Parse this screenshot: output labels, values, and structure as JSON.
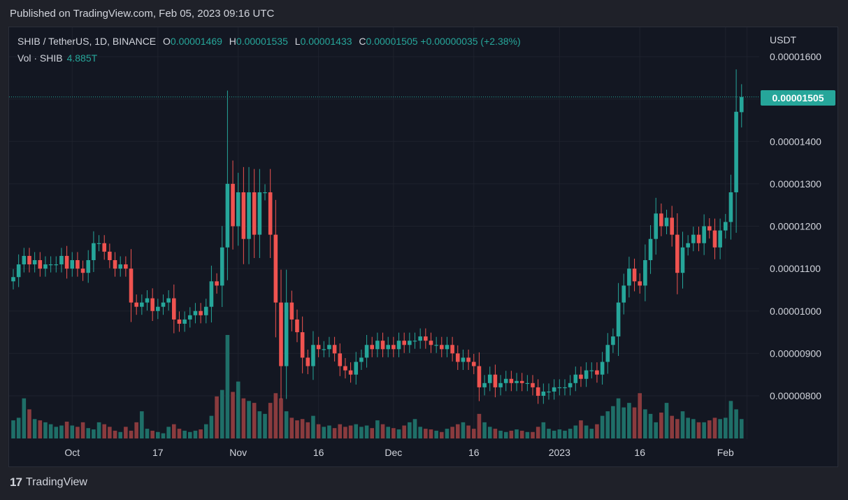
{
  "header": {
    "published": "Published on TradingView.com, Feb 05, 2023 09:16 UTC"
  },
  "legend": {
    "symbol": "SHIB / TetherUS, 1D, BINANCE",
    "open_key": "O",
    "open": "0.00001469",
    "high_key": "H",
    "high": "0.00001535",
    "low_key": "L",
    "low": "0.00001433",
    "close_key": "C",
    "close": "0.00001505",
    "change": "+0.00000035 (+2.38%)",
    "volume_label": "Vol · SHIB",
    "volume_value": "4.885T"
  },
  "axis": {
    "currency": "USDT",
    "last_price_tag": "0.00001505"
  },
  "footer": {
    "brand_logo": "17",
    "brand": "TradingView"
  },
  "colors": {
    "up": "#26a69a",
    "down": "#ef5350",
    "background": "#131722",
    "grid": "#1e222d",
    "text": "#d1d4dc"
  },
  "chart_data": {
    "type": "candlestick",
    "y_unit": "USDT",
    "ylim": [
      7.2e-06,
      1.62e-05
    ],
    "y_ticks": [
      "0.00000800",
      "0.00000900",
      "0.00001000",
      "0.00001100",
      "0.00001200",
      "0.00001300",
      "0.00001400",
      "0.00001500",
      "0.00001600"
    ],
    "y_tick_values": [
      8e-06,
      9e-06,
      1e-05,
      1.1e-05,
      1.2e-05,
      1.3e-05,
      1.4e-05,
      1.5e-05,
      1.6e-05
    ],
    "x_ticks": [
      {
        "label": "Oct",
        "index": 11
      },
      {
        "label": "17",
        "index": 27
      },
      {
        "label": "Nov",
        "index": 42
      },
      {
        "label": "16",
        "index": 57
      },
      {
        "label": "Dec",
        "index": 71
      },
      {
        "label": "16",
        "index": 86
      },
      {
        "label": "2023",
        "index": 102
      },
      {
        "label": "16",
        "index": 117
      },
      {
        "label": "Feb",
        "index": 133
      },
      {
        "label": "",
        "index": 137
      }
    ],
    "grid": true,
    "last_price": 1.505e-05,
    "close": [
      1.08e-05,
      1.11e-05,
      1.13e-05,
      1.11e-05,
      1.12e-05,
      1.1e-05,
      1.11e-05,
      1.11e-05,
      1.11e-05,
      1.13e-05,
      1.1e-05,
      1.12e-05,
      1.1e-05,
      1.09e-05,
      1.12e-05,
      1.16e-05,
      1.16e-05,
      1.14e-05,
      1.12e-05,
      1.1e-05,
      1.11e-05,
      1.1e-05,
      1.02e-05,
      1.01e-05,
      1.02e-05,
      1.03e-05,
      1e-05,
      1.01e-05,
      1.02e-05,
      1.03e-05,
      9.8e-06,
      9.7e-06,
      9.8e-06,
      9.9e-06,
      1e-05,
      9.9e-06,
      1.01e-05,
      1.07e-05,
      1.06e-05,
      1.15e-05,
      1.3e-05,
      1.2e-05,
      1.28e-05,
      1.17e-05,
      1.28e-05,
      1.18e-05,
      1.28e-05,
      1.28e-05,
      1.18e-05,
      1.02e-05,
      8.7e-06,
      1.02e-05,
      9.8e-06,
      9.5e-06,
      8.9e-06,
      8.7e-06,
      9.2e-06,
      9.1e-06,
      9.1e-06,
      9.2e-06,
      9e-06,
      8.7e-06,
      8.6e-06,
      8.5e-06,
      8.8e-06,
      8.9e-06,
      9.2e-06,
      9.1e-06,
      9.3e-06,
      9.1e-06,
      9.2e-06,
      9.1e-06,
      9.3e-06,
      9.2e-06,
      9.3e-06,
      9.3e-06,
      9.4e-06,
      9.3e-06,
      9.2e-06,
      9.2e-06,
      9.1e-06,
      9.2e-06,
      9e-06,
      8.8e-06,
      8.9e-06,
      8.8e-06,
      8.7e-06,
      8.2e-06,
      8.3e-06,
      8.5e-06,
      8.2e-06,
      8.3e-06,
      8.4e-06,
      8.3e-06,
      8.35e-06,
      8.3e-06,
      8.3e-06,
      8.2e-06,
      8e-06,
      8.1e-06,
      8.1e-06,
      8.2e-06,
      8.2e-06,
      8.2e-06,
      8.3e-06,
      8.5e-06,
      8.4e-06,
      8.6e-06,
      8.6e-06,
      8.5e-06,
      8.8e-06,
      9.2e-06,
      9.4e-06,
      1.02e-05,
      1.06e-05,
      1.1e-05,
      1.07e-05,
      1.06e-05,
      1.12e-05,
      1.17e-05,
      1.23e-05,
      1.2e-05,
      1.22e-05,
      1.18e-05,
      1.09e-05,
      1.15e-05,
      1.16e-05,
      1.18e-05,
      1.16e-05,
      1.2e-05,
      1.19e-05,
      1.15e-05,
      1.19e-05,
      1.21e-05,
      1.28e-05,
      1.47e-05,
      1.505e-05
    ],
    "volume_label": "Vol · SHIB",
    "volume_last": "4.885T",
    "volume": [
      0.28,
      0.32,
      0.62,
      0.45,
      0.3,
      0.28,
      0.25,
      0.22,
      0.18,
      0.2,
      0.26,
      0.2,
      0.18,
      0.25,
      0.16,
      0.14,
      0.25,
      0.22,
      0.18,
      0.12,
      0.1,
      0.18,
      0.12,
      0.25,
      0.42,
      0.15,
      0.12,
      0.1,
      0.08,
      0.18,
      0.22,
      0.15,
      0.12,
      0.1,
      0.12,
      0.14,
      0.22,
      0.35,
      0.65,
      0.75,
      1.6,
      0.72,
      0.88,
      0.62,
      0.58,
      0.55,
      0.42,
      0.38,
      0.55,
      0.7,
      0.62,
      0.42,
      0.32,
      0.28,
      0.3,
      0.25,
      0.35,
      0.22,
      0.18,
      0.2,
      0.16,
      0.22,
      0.18,
      0.2,
      0.22,
      0.18,
      0.2,
      0.16,
      0.28,
      0.22,
      0.18,
      0.16,
      0.14,
      0.2,
      0.25,
      0.3,
      0.18,
      0.15,
      0.14,
      0.12,
      0.1,
      0.15,
      0.18,
      0.22,
      0.25,
      0.2,
      0.15,
      0.38,
      0.25,
      0.18,
      0.15,
      0.12,
      0.1,
      0.12,
      0.14,
      0.12,
      0.1,
      0.1,
      0.18,
      0.25,
      0.15,
      0.12,
      0.14,
      0.12,
      0.15,
      0.2,
      0.28,
      0.2,
      0.15,
      0.22,
      0.35,
      0.42,
      0.5,
      0.62,
      0.48,
      0.55,
      0.48,
      0.7,
      0.45,
      0.38,
      0.25,
      0.4,
      0.55,
      0.35,
      0.3,
      0.42,
      0.32,
      0.3,
      0.25,
      0.25,
      0.28,
      0.32,
      0.3,
      0.32,
      0.58,
      0.45,
      0.3
    ]
  }
}
